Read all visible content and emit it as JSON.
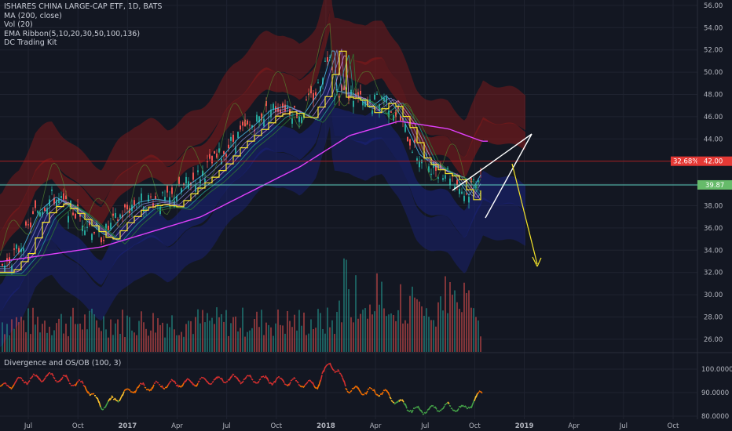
{
  "legend": {
    "title": "ISHARES CHINA LARGE-CAP ETF, 1D, BATS",
    "items": [
      "MA (200, close)",
      "Vol (20)",
      "EMA Ribbon(5,10,20,30,50,100,136)",
      "DC Trading Kit"
    ]
  },
  "oscillator_title": "Divergence and OS/OB (100, 3)",
  "price_badges": {
    "current": {
      "left": "32.68%",
      "right": "42.00",
      "color": "#e53935"
    },
    "level": {
      "value": "39.87",
      "color": "#66bb6a"
    }
  },
  "colors": {
    "background": "#131722",
    "grid": "#1f2330",
    "candle_up": "#26a69a",
    "candle_down": "#ef5350",
    "ma200": "#e040fb",
    "donchian": "#f5e52b",
    "arrow": "#f5e52b",
    "wedge": "#ffffff",
    "cloud_red": "#8b1a1a",
    "cloud_blue": "#1a237e",
    "horizontal_line": "#5fd0c0"
  },
  "chart_data": {
    "type": "line",
    "title": "ISHARES CHINA LARGE-CAP ETF, 1D, BATS",
    "xlabel": "",
    "ylabel": "",
    "x_ticks": [
      "Jul",
      "Oct",
      "2017",
      "Apr",
      "Jul",
      "Oct",
      "2018",
      "Apr",
      "Jul",
      "Oct",
      "2019",
      "Apr",
      "Jul",
      "Oct"
    ],
    "x_ticks_bold": [
      "2017",
      "2018",
      "2019"
    ],
    "y_ticks": [
      "56.00",
      "54.00",
      "52.00",
      "50.00",
      "48.00",
      "46.00",
      "44.00",
      "42.00",
      "40.00",
      "38.00",
      "36.00",
      "34.00",
      "32.00",
      "30.00",
      "28.00",
      "26.00"
    ],
    "ylim": [
      25,
      56.5
    ],
    "price_series": {
      "name": "Close",
      "x": [
        "2016-06",
        "2016-07",
        "2016-08",
        "2016-09",
        "2016-10",
        "2016-11",
        "2016-12",
        "2017-01",
        "2017-02",
        "2017-03",
        "2017-04",
        "2017-05",
        "2017-06",
        "2017-07",
        "2017-08",
        "2017-09",
        "2017-10",
        "2017-11",
        "2017-12",
        "2018-01",
        "2018-01-26",
        "2018-02",
        "2018-03",
        "2018-04",
        "2018-05",
        "2018-06",
        "2018-07",
        "2018-08",
        "2018-09",
        "2018-10",
        "2018-11"
      ],
      "values": [
        32.5,
        34.2,
        37.5,
        38.8,
        37.8,
        36.5,
        35.3,
        37.0,
        38.3,
        38.6,
        38.4,
        39.8,
        40.9,
        42.3,
        44.0,
        45.2,
        46.6,
        47.0,
        46.2,
        48.4,
        52.5,
        48.3,
        48.1,
        46.8,
        47.9,
        45.8,
        42.6,
        41.5,
        41.0,
        38.9,
        41.6
      ]
    },
    "ma200": {
      "name": "MA (200, close)",
      "x": [
        "2016-06",
        "2016-12",
        "2017-06",
        "2017-12",
        "2018-03",
        "2018-06",
        "2018-09",
        "2018-11"
      ],
      "values": [
        33.0,
        34.3,
        37.0,
        41.5,
        44.3,
        45.6,
        44.9,
        43.8
      ]
    },
    "oscillator": {
      "name": "Divergence and OS/OB (100, 3)",
      "y_ticks": [
        "100.0000",
        "90.0000",
        "80.0000"
      ],
      "x": [
        "2016-06",
        "2016-07",
        "2016-09",
        "2016-11",
        "2016-12",
        "2017-02",
        "2017-05",
        "2017-08",
        "2017-11",
        "2018-01",
        "2018-01-26",
        "2018-03",
        "2018-05",
        "2018-07",
        "2018-09",
        "2018-10",
        "2018-11"
      ],
      "values": [
        92,
        95,
        97,
        93,
        84,
        92,
        94,
        96,
        95,
        93,
        103,
        91,
        90,
        82,
        84,
        83,
        90
      ]
    },
    "annotations": [
      "rising wedge",
      "projected downside arrow"
    ],
    "horizontal_levels": [
      42.0,
      39.87
    ],
    "grid": true
  }
}
